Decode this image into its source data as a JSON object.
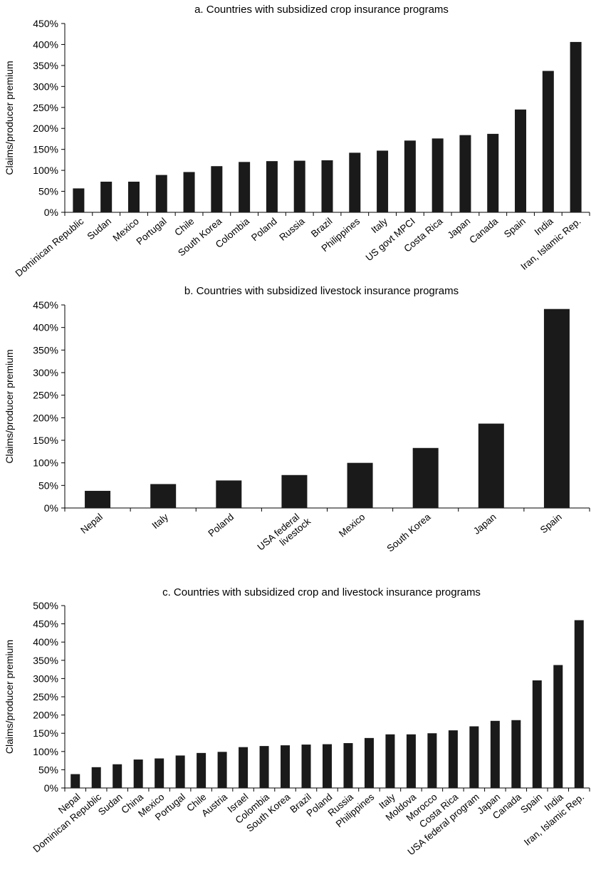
{
  "chart_data": [
    {
      "type": "bar",
      "title": "a. Countries with subsidized crop insurance programs",
      "xlabel": "",
      "ylabel": "Claims/producer premium",
      "ylim": [
        0,
        450
      ],
      "yticks": [
        "0%",
        "50%",
        "100%",
        "150%",
        "200%",
        "250%",
        "300%",
        "350%",
        "400%",
        "450%"
      ],
      "categories": [
        "Dominican Republic",
        "Sudan",
        "Mexico",
        "Portugal",
        "Chile",
        "South Korea",
        "Colombia",
        "Poland",
        "Russia",
        "Brazil",
        "Philippines",
        "Italy",
        "US govt MPCI",
        "Costa Rica",
        "Japan",
        "Canada",
        "Spain",
        "India",
        "Iran, Islamic Rep."
      ],
      "values": [
        57,
        73,
        73,
        89,
        96,
        110,
        120,
        122,
        123,
        124,
        142,
        147,
        171,
        176,
        184,
        187,
        245,
        337,
        406
      ],
      "grid": false,
      "bar_color": "#1a1a1a"
    },
    {
      "type": "bar",
      "title": "b. Countries with subsidized livestock insurance programs",
      "xlabel": "",
      "ylabel": "Claims/producer premium",
      "ylim": [
        0,
        450
      ],
      "yticks": [
        "0%",
        "50%",
        "100%",
        "150%",
        "200%",
        "250%",
        "300%",
        "350%",
        "400%",
        "450%"
      ],
      "categories": [
        "Nepal",
        "Italy",
        "Poland",
        "USA federal livestock",
        "Mexico",
        "South Korea",
        "Japan",
        "Spain"
      ],
      "values": [
        38,
        53,
        61,
        73,
        100,
        133,
        187,
        441
      ],
      "grid": false,
      "bar_color": "#1a1a1a"
    },
    {
      "type": "bar",
      "title": "c. Countries with subsidized crop and livestock insurance programs",
      "xlabel": "",
      "ylabel": "Claims/producer premium",
      "ylim": [
        0,
        500
      ],
      "yticks": [
        "0%",
        "50%",
        "100%",
        "150%",
        "200%",
        "250%",
        "300%",
        "350%",
        "400%",
        "450%",
        "500%"
      ],
      "categories": [
        "Nepal",
        "Dominican Republic",
        "Sudan",
        "China",
        "Mexico",
        "Portugal",
        "Chile",
        "Austria",
        "Israel",
        "Colombia",
        "South Korea",
        "Brazil",
        "Poland",
        "Russia",
        "Philippines",
        "Italy",
        "Moldova",
        "Morocco",
        "Costa Rica",
        "USA federal program",
        "Japan",
        "Canada",
        "Spain",
        "India",
        "Iran, Islamic Rep."
      ],
      "values": [
        38,
        57,
        65,
        78,
        81,
        89,
        96,
        99,
        112,
        115,
        117,
        119,
        120,
        123,
        137,
        147,
        147,
        150,
        158,
        169,
        184,
        186,
        295,
        337,
        460
      ],
      "grid": false,
      "bar_color": "#1a1a1a"
    }
  ]
}
